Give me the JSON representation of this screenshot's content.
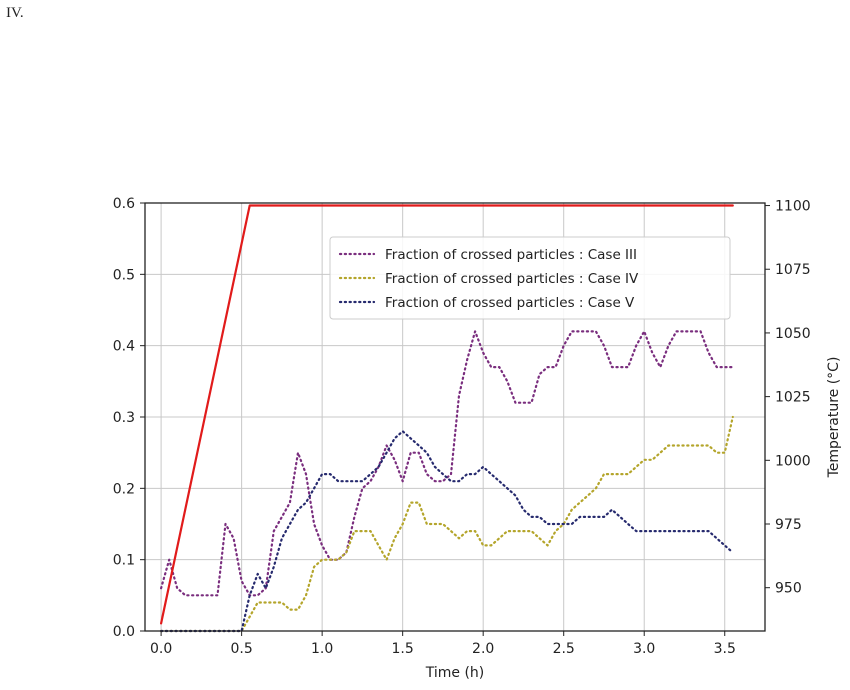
{
  "page": {
    "label": "IV."
  },
  "chart_data": {
    "type": "line",
    "xlabel": "Time (h)",
    "ylabel": "",
    "y2label": "Temperature (°C)",
    "xlim": [
      -0.1,
      3.75
    ],
    "ylim": [
      0.0,
      0.6
    ],
    "y2lim": [
      933,
      1101
    ],
    "x_ticks": [
      "0.0",
      "0.5",
      "1.0",
      "1.5",
      "2.0",
      "2.5",
      "3.0",
      "3.5"
    ],
    "y_ticks": [
      "0.0",
      "0.1",
      "0.2",
      "0.3",
      "0.4",
      "0.5",
      "0.6"
    ],
    "y2_ticks": [
      "950",
      "975",
      "1000",
      "1025",
      "1050",
      "1075",
      "1100"
    ],
    "grid": true,
    "legend_position": "upper-center",
    "series": [
      {
        "name": "Fraction of crossed particles : Case III",
        "color": "#7a2e7e",
        "style": "dotted",
        "axis": "left",
        "x": [
          0.0,
          0.05,
          0.1,
          0.15,
          0.2,
          0.25,
          0.3,
          0.35,
          0.4,
          0.45,
          0.5,
          0.55,
          0.6,
          0.65,
          0.7,
          0.75,
          0.8,
          0.85,
          0.9,
          0.95,
          1.0,
          1.05,
          1.1,
          1.15,
          1.2,
          1.25,
          1.3,
          1.35,
          1.4,
          1.45,
          1.5,
          1.55,
          1.6,
          1.65,
          1.7,
          1.75,
          1.8,
          1.85,
          1.9,
          1.95,
          2.0,
          2.05,
          2.1,
          2.15,
          2.2,
          2.25,
          2.3,
          2.35,
          2.4,
          2.45,
          2.5,
          2.55,
          2.6,
          2.65,
          2.7,
          2.75,
          2.8,
          2.85,
          2.9,
          2.95,
          3.0,
          3.05,
          3.1,
          3.15,
          3.2,
          3.25,
          3.3,
          3.35,
          3.4,
          3.45,
          3.5,
          3.55
        ],
        "y": [
          0.06,
          0.1,
          0.06,
          0.05,
          0.05,
          0.05,
          0.05,
          0.05,
          0.15,
          0.13,
          0.07,
          0.05,
          0.05,
          0.06,
          0.14,
          0.16,
          0.18,
          0.25,
          0.22,
          0.15,
          0.12,
          0.1,
          0.1,
          0.11,
          0.16,
          0.2,
          0.21,
          0.23,
          0.26,
          0.24,
          0.21,
          0.25,
          0.25,
          0.22,
          0.21,
          0.21,
          0.22,
          0.33,
          0.38,
          0.42,
          0.39,
          0.37,
          0.37,
          0.35,
          0.32,
          0.32,
          0.32,
          0.36,
          0.37,
          0.37,
          0.4,
          0.42,
          0.42,
          0.42,
          0.42,
          0.4,
          0.37,
          0.37,
          0.37,
          0.4,
          0.42,
          0.39,
          0.37,
          0.4,
          0.42,
          0.42,
          0.42,
          0.42,
          0.39,
          0.37,
          0.37,
          0.37
        ]
      },
      {
        "name": "Fraction of crossed particles : Case IV",
        "color": "#b4a52b",
        "style": "dotted",
        "axis": "left",
        "x": [
          0.0,
          0.1,
          0.2,
          0.3,
          0.4,
          0.5,
          0.55,
          0.6,
          0.65,
          0.7,
          0.75,
          0.8,
          0.85,
          0.9,
          0.95,
          1.0,
          1.05,
          1.1,
          1.15,
          1.2,
          1.25,
          1.3,
          1.35,
          1.4,
          1.45,
          1.5,
          1.55,
          1.6,
          1.65,
          1.7,
          1.75,
          1.8,
          1.85,
          1.9,
          1.95,
          2.0,
          2.05,
          2.1,
          2.15,
          2.2,
          2.25,
          2.3,
          2.35,
          2.4,
          2.45,
          2.5,
          2.55,
          2.6,
          2.65,
          2.7,
          2.75,
          2.8,
          2.85,
          2.9,
          2.95,
          3.0,
          3.05,
          3.1,
          3.15,
          3.2,
          3.25,
          3.3,
          3.35,
          3.4,
          3.45,
          3.5,
          3.55
        ],
        "y": [
          0.0,
          0.0,
          0.0,
          0.0,
          0.0,
          0.0,
          0.02,
          0.04,
          0.04,
          0.04,
          0.04,
          0.03,
          0.03,
          0.05,
          0.09,
          0.1,
          0.1,
          0.1,
          0.11,
          0.14,
          0.14,
          0.14,
          0.12,
          0.1,
          0.13,
          0.15,
          0.18,
          0.18,
          0.15,
          0.15,
          0.15,
          0.14,
          0.13,
          0.14,
          0.14,
          0.12,
          0.12,
          0.13,
          0.14,
          0.14,
          0.14,
          0.14,
          0.13,
          0.12,
          0.14,
          0.15,
          0.17,
          0.18,
          0.19,
          0.2,
          0.22,
          0.22,
          0.22,
          0.22,
          0.23,
          0.24,
          0.24,
          0.25,
          0.26,
          0.26,
          0.26,
          0.26,
          0.26,
          0.26,
          0.25,
          0.25,
          0.3
        ]
      },
      {
        "name": "Fraction of crossed particles : Case V",
        "color": "#262a6e",
        "style": "dotted",
        "axis": "left",
        "x": [
          0.0,
          0.1,
          0.2,
          0.3,
          0.4,
          0.5,
          0.55,
          0.6,
          0.65,
          0.7,
          0.75,
          0.8,
          0.85,
          0.9,
          0.95,
          1.0,
          1.05,
          1.1,
          1.15,
          1.2,
          1.25,
          1.3,
          1.35,
          1.4,
          1.45,
          1.5,
          1.55,
          1.6,
          1.65,
          1.7,
          1.75,
          1.8,
          1.85,
          1.9,
          1.95,
          2.0,
          2.05,
          2.1,
          2.15,
          2.2,
          2.25,
          2.3,
          2.35,
          2.4,
          2.45,
          2.5,
          2.55,
          2.6,
          2.65,
          2.7,
          2.75,
          2.8,
          2.85,
          2.9,
          2.95,
          3.0,
          3.05,
          3.1,
          3.15,
          3.2,
          3.25,
          3.3,
          3.35,
          3.4,
          3.45,
          3.5,
          3.55
        ],
        "y": [
          0.0,
          0.0,
          0.0,
          0.0,
          0.0,
          0.0,
          0.05,
          0.08,
          0.06,
          0.09,
          0.13,
          0.15,
          0.17,
          0.18,
          0.2,
          0.22,
          0.22,
          0.21,
          0.21,
          0.21,
          0.21,
          0.22,
          0.23,
          0.25,
          0.27,
          0.28,
          0.27,
          0.26,
          0.25,
          0.23,
          0.22,
          0.21,
          0.21,
          0.22,
          0.22,
          0.23,
          0.22,
          0.21,
          0.2,
          0.19,
          0.17,
          0.16,
          0.16,
          0.15,
          0.15,
          0.15,
          0.15,
          0.16,
          0.16,
          0.16,
          0.16,
          0.17,
          0.16,
          0.15,
          0.14,
          0.14,
          0.14,
          0.14,
          0.14,
          0.14,
          0.14,
          0.14,
          0.14,
          0.14,
          0.13,
          0.12,
          0.11
        ]
      },
      {
        "name": "Temperature",
        "color": "#e11b1b",
        "style": "solid",
        "axis": "right",
        "x": [
          0.0,
          0.55,
          3.55
        ],
        "y": [
          936,
          1100,
          1100
        ]
      }
    ]
  }
}
